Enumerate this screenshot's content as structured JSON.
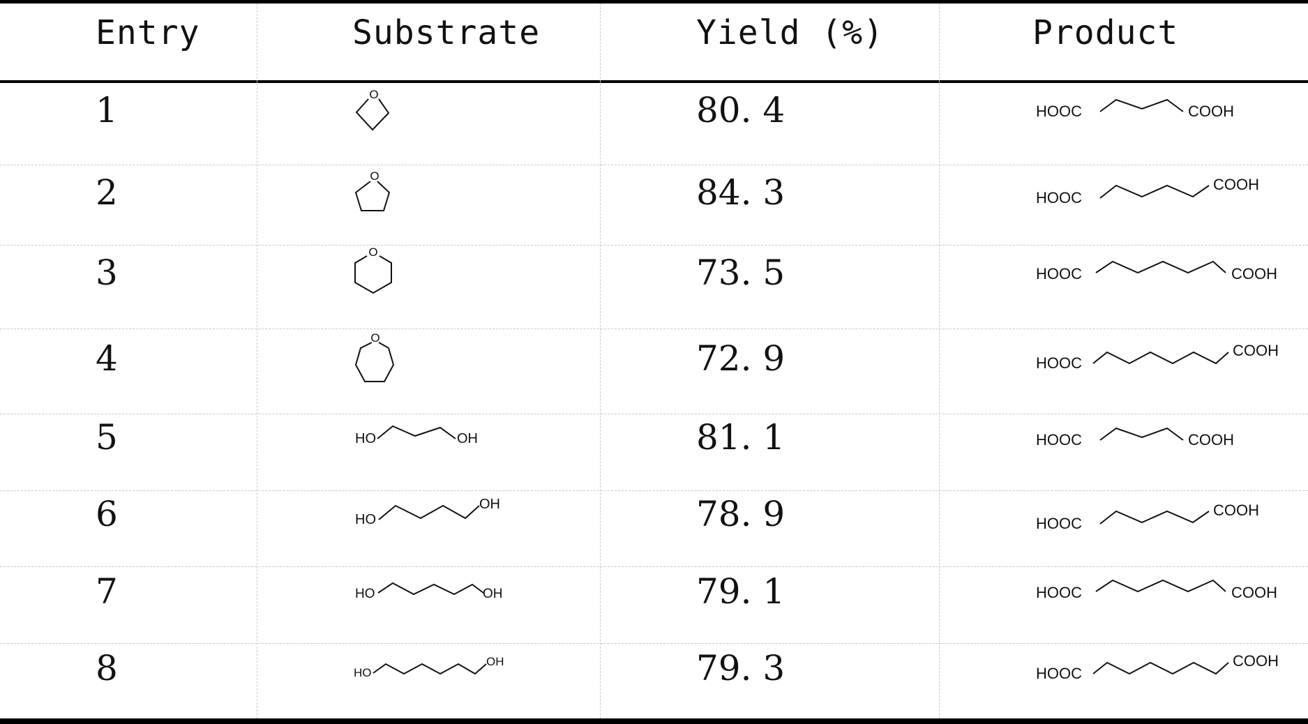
{
  "table": {
    "headers": {
      "entry": "Entry",
      "substrate": "Substrate",
      "yield": "Yield (%)",
      "product": "Product"
    },
    "rows": [
      {
        "entry": "1",
        "yield": "80. 4",
        "substrate": {
          "structure": "oxetane-icon",
          "labels": [
            "O"
          ]
        },
        "product": {
          "structure": "glutaric-acid-icon",
          "labels": [
            "HOOC",
            "COOH"
          ]
        }
      },
      {
        "entry": "2",
        "yield": "84. 3",
        "substrate": {
          "structure": "tetrahydrofuran-icon",
          "labels": [
            "O"
          ]
        },
        "product": {
          "structure": "adipic-acid-icon",
          "labels": [
            "HOOC",
            "COOH"
          ]
        }
      },
      {
        "entry": "3",
        "yield": "73. 5",
        "substrate": {
          "structure": "tetrahydropyran-icon",
          "labels": [
            "O"
          ]
        },
        "product": {
          "structure": "pimelic-acid-icon",
          "labels": [
            "HOOC",
            "COOH"
          ]
        }
      },
      {
        "entry": "4",
        "yield": "72. 9",
        "substrate": {
          "structure": "oxepane-icon",
          "labels": [
            "O"
          ]
        },
        "product": {
          "structure": "suberic-acid-icon",
          "labels": [
            "HOOC",
            "COOH"
          ]
        }
      },
      {
        "entry": "5",
        "yield": "81. 1",
        "substrate": {
          "structure": "propanediol-icon",
          "labels": [
            "HO",
            "OH"
          ]
        },
        "product": {
          "structure": "glutaric-acid-icon",
          "labels": [
            "HOOC",
            "COOH"
          ]
        }
      },
      {
        "entry": "6",
        "yield": "78. 9",
        "substrate": {
          "structure": "butanediol-icon",
          "labels": [
            "HO",
            "OH"
          ]
        },
        "product": {
          "structure": "adipic-acid-icon",
          "labels": [
            "HOOC",
            "COOH"
          ]
        }
      },
      {
        "entry": "7",
        "yield": "79. 1",
        "substrate": {
          "structure": "pentanediol-icon",
          "labels": [
            "HO",
            "OH"
          ]
        },
        "product": {
          "structure": "pimelic-acid-icon",
          "labels": [
            "HOOC",
            "COOH"
          ]
        }
      },
      {
        "entry": "8",
        "yield": "79. 3",
        "substrate": {
          "structure": "hexanediol-icon",
          "labels": [
            "HO",
            "OH"
          ]
        },
        "product": {
          "structure": "suberic-acid-icon",
          "labels": [
            "HOOC",
            "COOH"
          ]
        }
      }
    ]
  }
}
